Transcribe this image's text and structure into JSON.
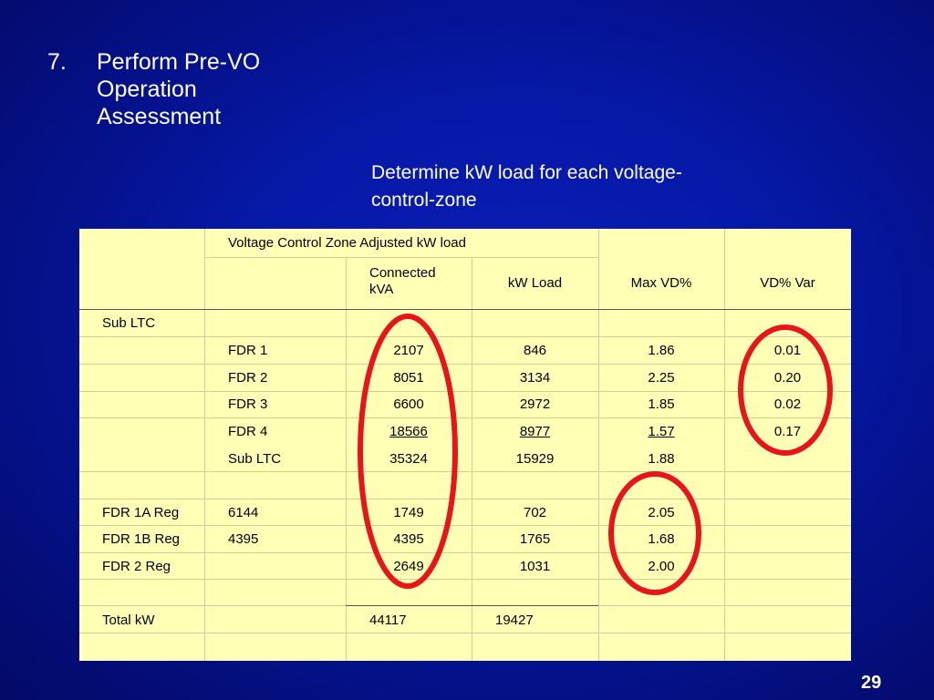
{
  "slide": {
    "step_number": "7.",
    "step_title": "Perform Pre-VO Operation Assessment",
    "subtitle": "Determine kW load for each voltage-control-zone",
    "page_number": "29"
  },
  "table": {
    "group_header": "Voltage Control Zone Adjusted kW load",
    "columns": [
      "Connected kVA",
      "kW Load",
      "Max VD%",
      "VD% Var"
    ],
    "rows": [
      {
        "a": "Sub LTC",
        "b": "",
        "kva": "",
        "kw": "",
        "vd": "",
        "var": ""
      },
      {
        "a": "",
        "b": "FDR 1",
        "kva": "2107",
        "kw": "846",
        "vd": "1.86",
        "var": "0.01"
      },
      {
        "a": "",
        "b": "FDR 2",
        "kva": "8051",
        "kw": "3134",
        "vd": "2.25",
        "var": "0.20"
      },
      {
        "a": "",
        "b": "FDR 3",
        "kva": "6600",
        "kw": "2972",
        "vd": "1.85",
        "var": "0.02"
      },
      {
        "a": "",
        "b": "FDR 4",
        "kva": "18566",
        "kw": "8977",
        "vd": "1.57",
        "var": "0.17"
      },
      {
        "a": "",
        "b": "Sub LTC",
        "kva": "35324",
        "kw": "15929",
        "vd": "1.88",
        "var": ""
      },
      {
        "a": "",
        "b": "",
        "kva": "",
        "kw": "",
        "vd": "",
        "var": ""
      },
      {
        "a": "FDR 1A Reg",
        "b": "6144",
        "kva": "1749",
        "kw": "702",
        "vd": "2.05",
        "var": ""
      },
      {
        "a": "FDR 1B Reg",
        "b": "4395",
        "kva": "4395",
        "kw": "1765",
        "vd": "1.68",
        "var": ""
      },
      {
        "a": "FDR 2 Reg",
        "b": "",
        "kva": "2649",
        "kw": "1031",
        "vd": "2.00",
        "var": ""
      },
      {
        "a": "",
        "b": "",
        "kva": "",
        "kw": "",
        "vd": "",
        "var": ""
      },
      {
        "a": "Total kW",
        "b": "",
        "kva": "44117",
        "kw": "19427",
        "vd": "",
        "var": ""
      }
    ]
  },
  "annotations": {
    "circle_color": "#e8141a",
    "circled_columns": [
      "Connected kVA",
      "VD% Var",
      "Max VD%"
    ]
  }
}
